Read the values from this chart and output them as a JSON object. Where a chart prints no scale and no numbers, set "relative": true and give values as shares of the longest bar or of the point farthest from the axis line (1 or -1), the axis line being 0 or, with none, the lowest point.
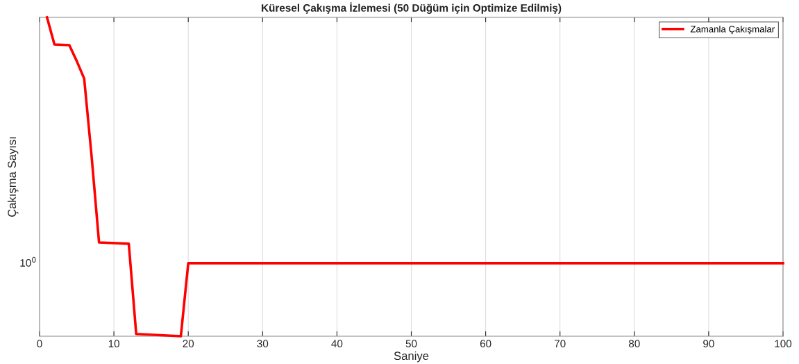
{
  "chart_data": {
    "type": "line",
    "title": "Küresel Çakışma İzlemesi (50 Düğüm için Optimize Edilmiş)",
    "xlabel": "Saniye",
    "ylabel": "Çakışma Sayısı",
    "x": [
      1,
      2,
      4,
      5,
      6,
      7,
      8,
      12,
      13,
      19,
      20,
      100
    ],
    "series": [
      {
        "name": "Zamanla Çakışmalar",
        "color": "#ff0000",
        "values": [
          1.0,
          0.915,
          0.913,
          0.863,
          0.808,
          0.564,
          0.294,
          0.29,
          0.007,
          0,
          0.229,
          0.229
        ]
      }
    ],
    "relative": true,
    "xlim": [
      0,
      100
    ],
    "xticks": [
      0,
      10,
      20,
      30,
      40,
      50,
      60,
      70,
      80,
      90,
      100
    ],
    "annotations": [
      "10$^{0}$"
    ],
    "grid": "x",
    "legend": "top right",
    "line_style": "solid",
    "marker": "none"
  }
}
